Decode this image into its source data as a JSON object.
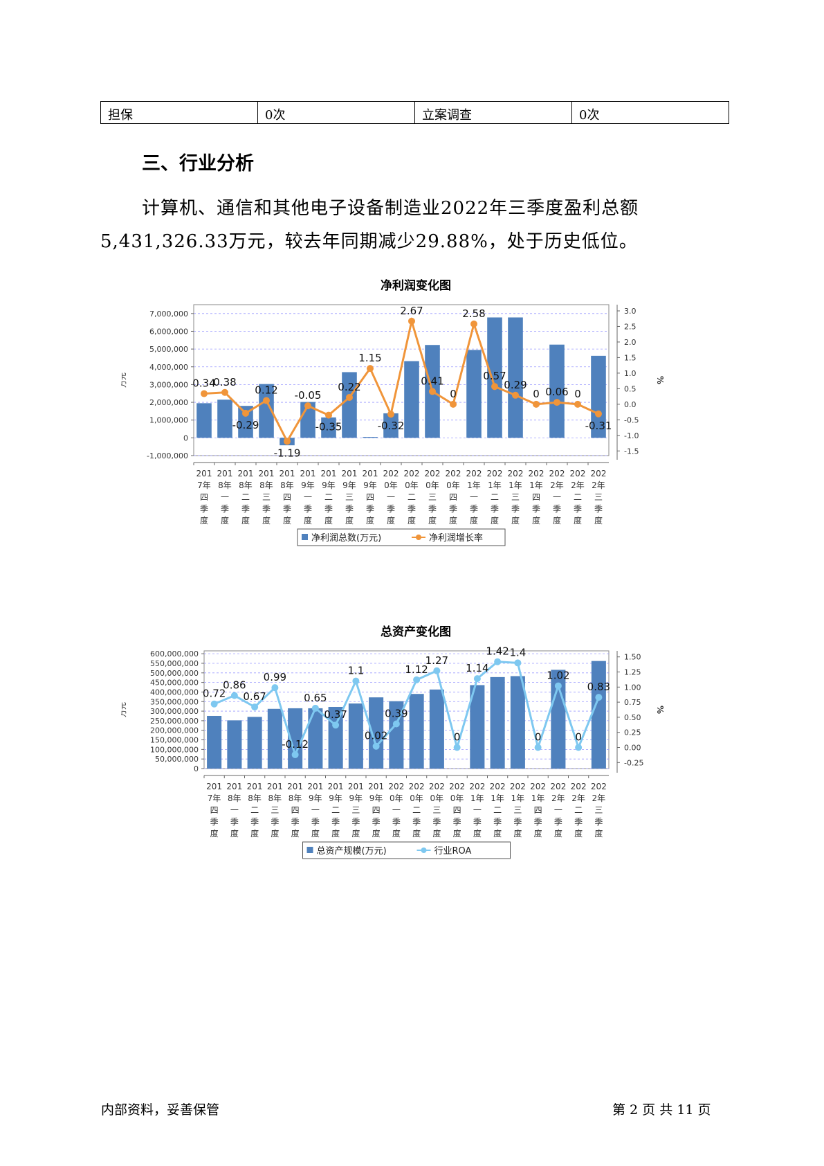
{
  "table": {
    "row": [
      "担保",
      "0次",
      "立案调查",
      "0次"
    ]
  },
  "section": {
    "title": "三、行业分析",
    "para_line1": "计算机、通信和其他电子设备制造业2022年三季度盈利总额",
    "para_line2": "5,431,326.33万元，较去年同期减少29.88%，处于历史低位。"
  },
  "charts": [
    {
      "title": "净利润变化图",
      "type": "bar+line",
      "categories": [
        "2017年四季度",
        "2018年一季度",
        "2018年二季度",
        "2018年三季度",
        "2018年四季度",
        "2019年一季度",
        "2019年二季度",
        "2019年三季度",
        "2019年四季度",
        "2020年一季度",
        "2020年二季度",
        "2020年三季度",
        "2020年四季度",
        "2021年一季度",
        "2021年二季度",
        "2021年三季度",
        "2021年四季度",
        "2022年一季度",
        "2022年二季度",
        "2022年三季度"
      ],
      "category_lines": [
        [
          "201",
          "7年",
          "四",
          "季",
          "度"
        ],
        [
          "201",
          "8年",
          "一",
          "季",
          "度"
        ],
        [
          "201",
          "8年",
          "二",
          "季",
          "度"
        ],
        [
          "201",
          "8年",
          "三",
          "季",
          "度"
        ],
        [
          "201",
          "8年",
          "四",
          "季",
          "度"
        ],
        [
          "201",
          "9年",
          "一",
          "季",
          "度"
        ],
        [
          "201",
          "9年",
          "二",
          "季",
          "度"
        ],
        [
          "201",
          "9年",
          "三",
          "季",
          "度"
        ],
        [
          "201",
          "9年",
          "四",
          "季",
          "度"
        ],
        [
          "202",
          "0年",
          "一",
          "季",
          "度"
        ],
        [
          "202",
          "0年",
          "二",
          "季",
          "度"
        ],
        [
          "202",
          "0年",
          "三",
          "季",
          "度"
        ],
        [
          "202",
          "0年",
          "四",
          "季",
          "度"
        ],
        [
          "202",
          "1年",
          "一",
          "季",
          "度"
        ],
        [
          "202",
          "1年",
          "二",
          "季",
          "度"
        ],
        [
          "202",
          "1年",
          "三",
          "季",
          "度"
        ],
        [
          "202",
          "1年",
          "四",
          "季",
          "度"
        ],
        [
          "202",
          "2年",
          "一",
          "季",
          "度"
        ],
        [
          "202",
          "2年",
          "二",
          "季",
          "度"
        ],
        [
          "202",
          "2年",
          "三",
          "季",
          "度"
        ]
      ],
      "bar_series": {
        "name": "净利润总数(万元)",
        "color": "#4f81bd",
        "values": [
          1950000,
          2150000,
          1800000,
          3030000,
          -420000,
          2020000,
          1150000,
          3700000,
          50000,
          1380000,
          4320000,
          5230000,
          0,
          4950000,
          6780000,
          6780000,
          0,
          5250000,
          0,
          4620000
        ]
      },
      "line_series": {
        "name": "净利润增长率",
        "color": "#f0953a",
        "values": [
          0.34,
          0.38,
          -0.29,
          0.12,
          -1.19,
          -0.05,
          -0.35,
          0.22,
          1.15,
          -0.32,
          2.67,
          0.41,
          0,
          2.58,
          0.57,
          0.29,
          0,
          0.06,
          0,
          -0.31
        ],
        "labels": [
          "0.34",
          "0.38",
          "-0.29",
          "0.12",
          "-1.19",
          "-0.05",
          "-0.35",
          "0.22",
          "1.15",
          "-0.32",
          "2.67",
          "0.41",
          "0",
          "2.58",
          "0.57",
          "0.29",
          "0",
          "0.06",
          "0",
          "-0.31"
        ]
      },
      "y_left": {
        "label": "万元",
        "min": -1000000,
        "max": 7500000,
        "ticks": [
          -1000000,
          0,
          1000000,
          2000000,
          3000000,
          4000000,
          5000000,
          6000000,
          7000000
        ],
        "tick_labels": [
          "-1,000,000",
          "0",
          "1,000,000",
          "2,000,000",
          "3,000,000",
          "4,000,000",
          "5,000,000",
          "6,000,000",
          "7,000,000"
        ]
      },
      "y_right": {
        "label": "%",
        "min": -1.65,
        "max": 3.2,
        "ticks": [
          -1.5,
          -1.0,
          -0.5,
          0.0,
          0.5,
          1.0,
          1.5,
          2.0,
          2.5,
          3.0
        ],
        "tick_labels": [
          "-1.5",
          "-1.0",
          "-0.5",
          "0.0",
          "0.5",
          "1.0",
          "1.5",
          "2.0",
          "2.5",
          "3.0"
        ]
      },
      "grid": true,
      "legend_position": "bottom"
    },
    {
      "title": "总资产变化图",
      "type": "bar+line",
      "categories": [
        "2017年四季度",
        "2018年一季度",
        "2018年二季度",
        "2018年三季度",
        "2018年四季度",
        "2019年一季度",
        "2019年二季度",
        "2019年三季度",
        "2019年四季度",
        "2020年一季度",
        "2020年二季度",
        "2020年三季度",
        "2020年四季度",
        "2021年一季度",
        "2021年二季度",
        "2021年三季度",
        "2021年四季度",
        "2022年一季度",
        "2022年二季度",
        "2022年三季度"
      ],
      "category_lines": [
        [
          "201",
          "7年",
          "四",
          "季",
          "度"
        ],
        [
          "201",
          "8年",
          "一",
          "季",
          "度"
        ],
        [
          "201",
          "8年",
          "二",
          "季",
          "度"
        ],
        [
          "201",
          "8年",
          "三",
          "季",
          "度"
        ],
        [
          "201",
          "8年",
          "四",
          "季",
          "度"
        ],
        [
          "201",
          "9年",
          "一",
          "季",
          "度"
        ],
        [
          "201",
          "9年",
          "二",
          "季",
          "度"
        ],
        [
          "201",
          "9年",
          "三",
          "季",
          "度"
        ],
        [
          "201",
          "9年",
          "四",
          "季",
          "度"
        ],
        [
          "202",
          "0年",
          "一",
          "季",
          "度"
        ],
        [
          "202",
          "0年",
          "二",
          "季",
          "度"
        ],
        [
          "202",
          "0年",
          "三",
          "季",
          "度"
        ],
        [
          "202",
          "0年",
          "四",
          "季",
          "度"
        ],
        [
          "202",
          "1年",
          "一",
          "季",
          "度"
        ],
        [
          "202",
          "1年",
          "二",
          "季",
          "度"
        ],
        [
          "202",
          "1年",
          "三",
          "季",
          "度"
        ],
        [
          "202",
          "1年",
          "四",
          "季",
          "度"
        ],
        [
          "202",
          "2年",
          "一",
          "季",
          "度"
        ],
        [
          "202",
          "2年",
          "二",
          "季",
          "度"
        ],
        [
          "202",
          "2年",
          "三",
          "季",
          "度"
        ]
      ],
      "bar_series": {
        "name": "总资产规模(万元)",
        "color": "#4f81bd",
        "values": [
          275000000,
          252000000,
          270000000,
          312000000,
          315000000,
          315000000,
          322000000,
          340000000,
          372000000,
          352000000,
          390000000,
          413000000,
          0,
          436000000,
          478000000,
          483000000,
          0,
          516000000,
          0,
          562000000
        ]
      },
      "line_series": {
        "name": "行业ROA",
        "color": "#7ec8f0",
        "values": [
          0.72,
          0.86,
          0.67,
          0.99,
          -0.12,
          0.65,
          0.37,
          1.1,
          0.02,
          0.39,
          1.12,
          1.27,
          0,
          1.14,
          1.42,
          1.4,
          0,
          1.02,
          0,
          0.83
        ],
        "labels": [
          "0.72",
          "0.86",
          "0.67",
          "0.99",
          "-0.12",
          "0.65",
          "0.37",
          "1.1",
          "0.02",
          "0.39",
          "1.12",
          "1.27",
          "0",
          "1.14",
          "1.42",
          "1.4",
          "0",
          "1.02",
          "0",
          "0.83"
        ]
      },
      "y_left": {
        "label": "万元",
        "min": 0,
        "max": 615000000,
        "ticks": [
          0,
          50000000,
          100000000,
          150000000,
          200000000,
          250000000,
          300000000,
          350000000,
          400000000,
          450000000,
          500000000,
          550000000,
          600000000
        ],
        "tick_labels": [
          "0",
          "50,000,000",
          "100,000,000",
          "150,000,000",
          "200,000,000",
          "250,000,000",
          "300,000,000",
          "350,000,000",
          "400,000,000",
          "450,000,000",
          "500,000,000",
          "550,000,000",
          "600,000,000"
        ]
      },
      "y_right": {
        "label": "%",
        "min": -0.35,
        "max": 1.6,
        "ticks": [
          -0.25,
          0.0,
          0.25,
          0.5,
          0.75,
          1.0,
          1.25,
          1.5
        ],
        "tick_labels": [
          "-0.25",
          "0.00",
          "0.25",
          "0.50",
          "0.75",
          "1.00",
          "1.25",
          "1.50"
        ]
      },
      "grid": true,
      "legend_position": "bottom"
    }
  ],
  "footer": {
    "left": "内部资料，妥善保管",
    "right": "第 2 页   共 11 页"
  }
}
